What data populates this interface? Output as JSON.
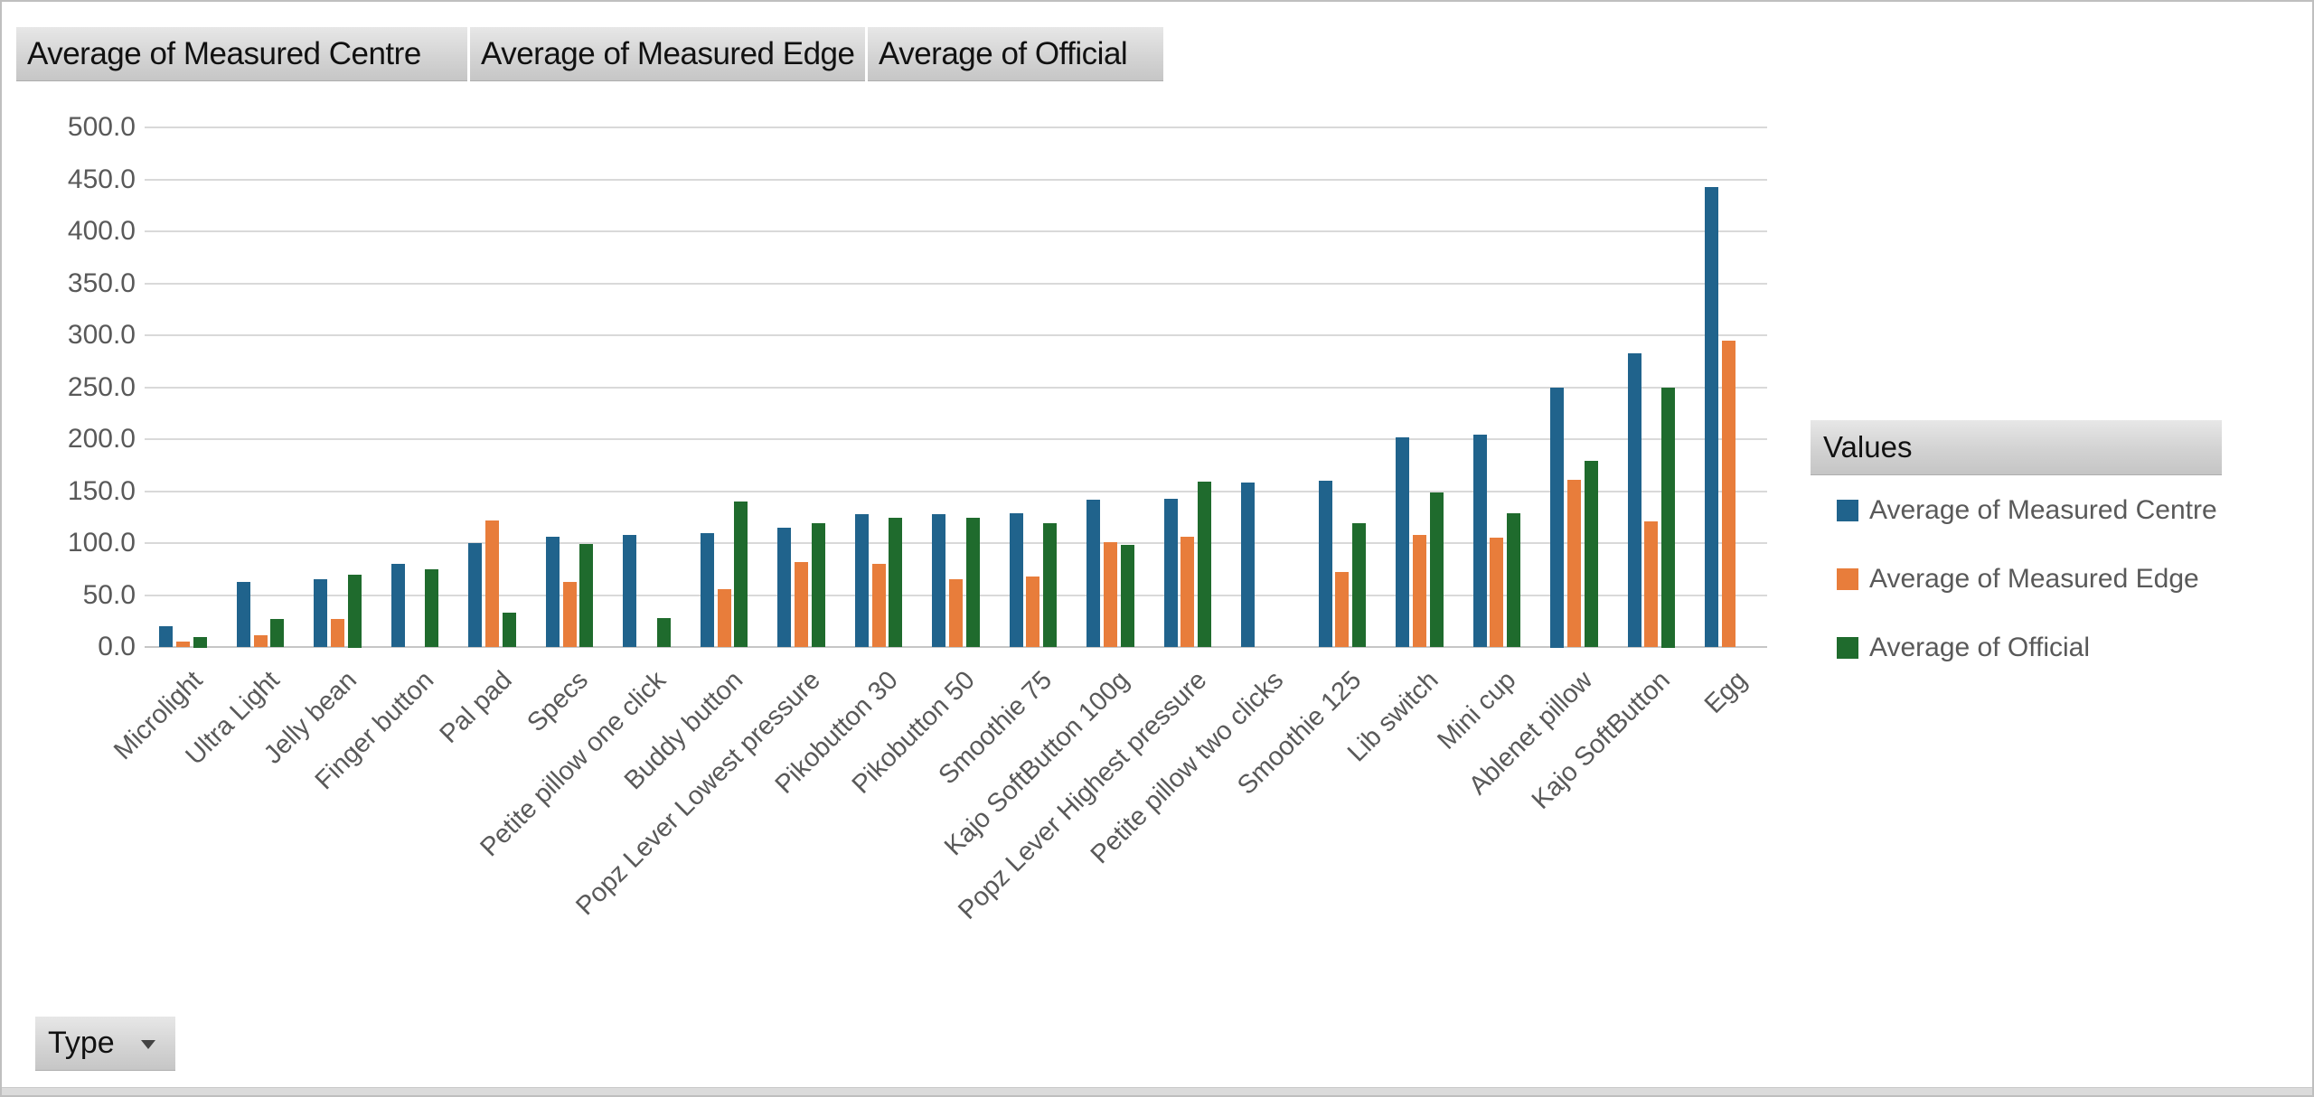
{
  "field_buttons": [
    {
      "label": "Average  of  Measured  Centre"
    },
    {
      "label": "Average  of  Measured  Edge"
    },
    {
      "label": "Average  of  Official"
    }
  ],
  "legend": {
    "header": "Values"
  },
  "axis_filter_button": {
    "label": "Type"
  },
  "chart_data": {
    "type": "bar",
    "title": "",
    "xlabel": "",
    "ylabel": "",
    "categories": [
      "Microlight",
      "Ultra Light",
      "Jelly bean",
      "Finger button",
      "Pal pad",
      "Specs",
      "Petite pillow one click",
      "Buddy button",
      "Popz Lever Lowest pressure",
      "Pikobutton 30",
      "Pikobutton 50",
      "Smoothie 75",
      "Kajo SoftButton 100g",
      "Popz Lever Highest pressure",
      "Petite pillow two clicks",
      "Smoothie 125",
      "Lib switch",
      "Mini cup",
      "Ablenet pillow",
      "Kajo SoftButton",
      "Egg"
    ],
    "series": [
      {
        "name": "Average of Measured Centre",
        "color": "#20638C",
        "values": [
          20,
          63,
          65,
          80,
          100,
          106,
          108,
          110,
          115,
          128,
          128,
          129,
          142,
          143,
          158,
          160,
          202,
          204,
          250,
          283,
          443
        ]
      },
      {
        "name": "Average of Measured Edge",
        "color": "#E87D3B",
        "values": [
          5,
          11,
          27,
          null,
          122,
          63,
          null,
          56,
          82,
          80,
          65,
          68,
          101,
          106,
          null,
          72,
          108,
          105,
          161,
          121,
          295
        ]
      },
      {
        "name": "Average of Official",
        "color": "#1F6B2D",
        "values": [
          10,
          27,
          70,
          75,
          33,
          99,
          28,
          140,
          119,
          124,
          124,
          119,
          98,
          159,
          null,
          119,
          149,
          129,
          179,
          250,
          null
        ]
      }
    ],
    "ylim": [
      0,
      500
    ],
    "ytick_step": 50,
    "ytick_format": "0.0",
    "grid": true,
    "legend_position": "right",
    "gridline_color": "#D9D9D9",
    "axis_text_color": "#595959"
  }
}
